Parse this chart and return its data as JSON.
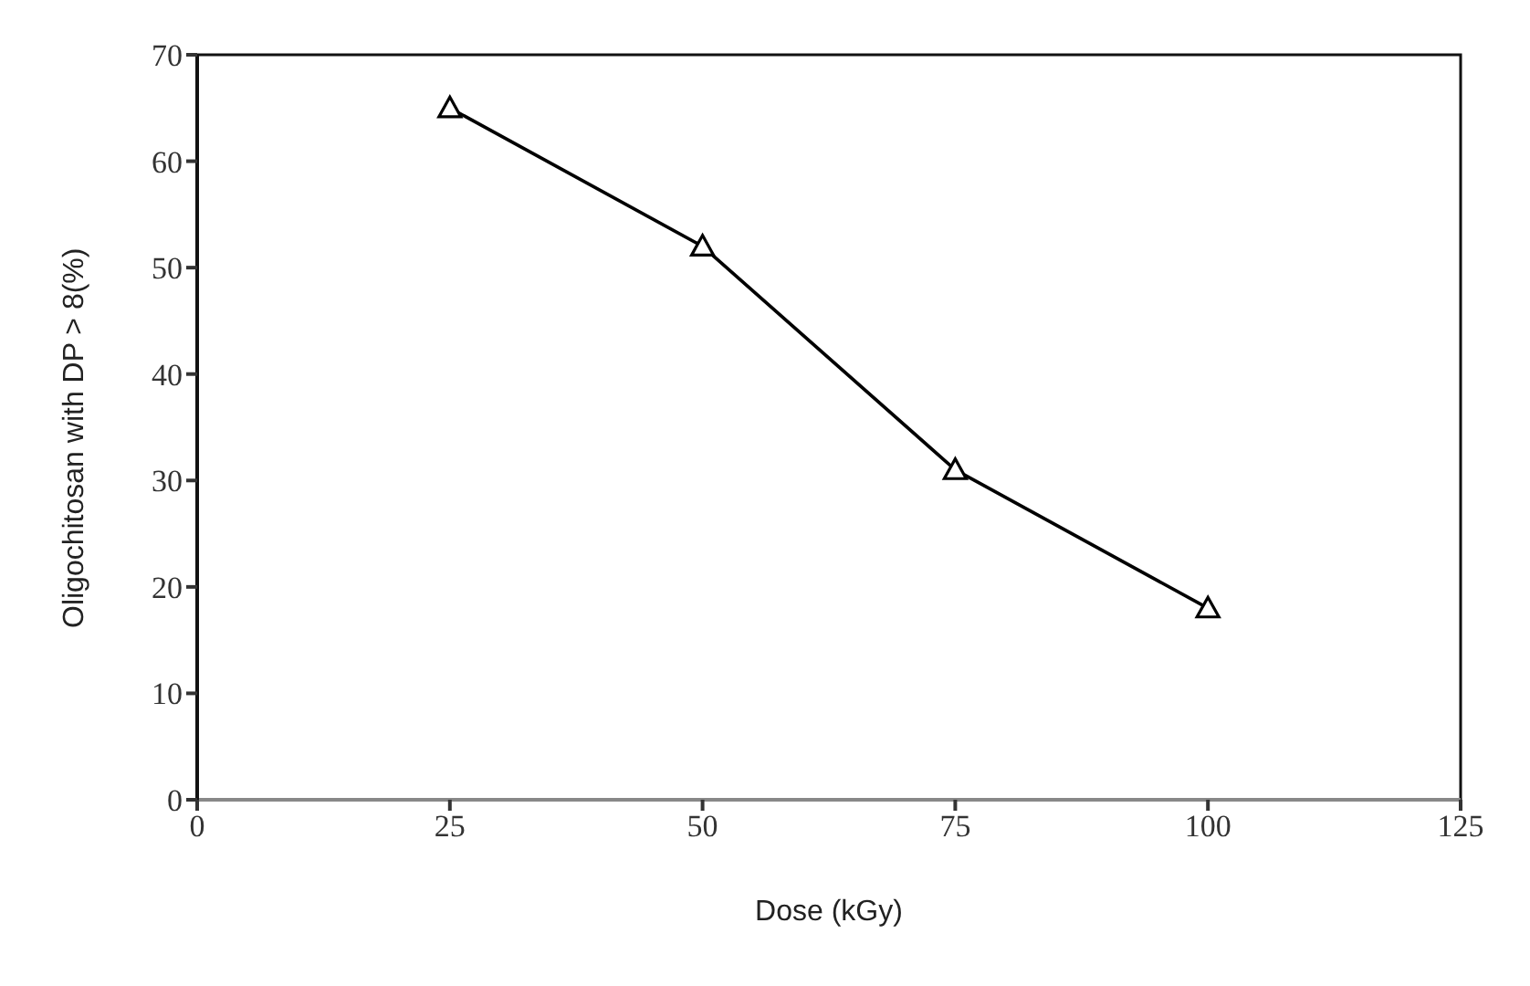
{
  "chart_data": {
    "type": "line",
    "xlabel": "Dose (kGy)",
    "ylabel": "Oligochitosan with DP > 8(%)",
    "x": [
      25,
      50,
      75,
      100
    ],
    "series": [
      {
        "color": "#000000",
        "values": [
          65,
          52,
          31,
          18
        ]
      }
    ],
    "xlim": [
      0,
      125
    ],
    "xticks": [
      0,
      25,
      50,
      75,
      100,
      125
    ],
    "ylim": [
      0,
      70
    ],
    "yticks": [
      0,
      10,
      20,
      30,
      40,
      50,
      60,
      70
    ],
    "marker": "triangle",
    "line_style": "solid",
    "grid": false,
    "legend": false
  }
}
